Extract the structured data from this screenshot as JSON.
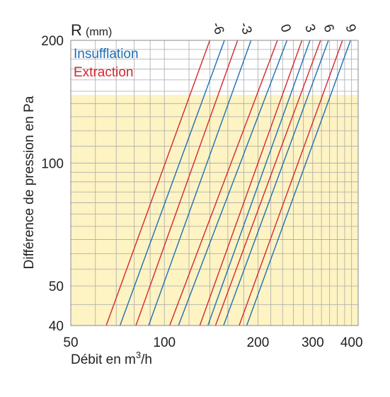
{
  "chart_data": {
    "type": "line",
    "x_scale": "log",
    "y_scale": "log",
    "xlim": [
      50,
      420
    ],
    "ylim": [
      40,
      200
    ],
    "xlabel_prefix": "Débit en m",
    "xlabel_sup": "3",
    "xlabel_suffix": "/h",
    "ylabel": "Différence de pression en Pa",
    "x_ticks": [
      50,
      100,
      200,
      300,
      400
    ],
    "y_ticks": [
      40,
      50,
      100,
      200
    ],
    "highlight_band_y": [
      40,
      147
    ],
    "highlight_color": "#fdf3c3",
    "grid": true,
    "r_label": "R",
    "r_unit": "(mm)",
    "r_values": [
      "-6",
      "-3",
      "0",
      "3",
      "6",
      "9"
    ],
    "colors": {
      "insufflation": "#1f6fb5",
      "extraction": "#d7262e"
    },
    "series": [
      {
        "name": "Extraction",
        "r": "-6",
        "points": [
          [
            65,
            40
          ],
          [
            140,
            200
          ]
        ]
      },
      {
        "name": "Insufflation",
        "r": "-6",
        "points": [
          [
            72,
            40
          ],
          [
            156,
            200
          ]
        ]
      },
      {
        "name": "Extraction",
        "r": "-3",
        "points": [
          [
            81,
            40
          ],
          [
            172,
            200
          ]
        ]
      },
      {
        "name": "Insufflation",
        "r": "-3",
        "points": [
          [
            89,
            40
          ],
          [
            190,
            200
          ]
        ]
      },
      {
        "name": "Extraction",
        "r": "0",
        "points": [
          [
            104,
            40
          ],
          [
            231,
            200
          ]
        ]
      },
      {
        "name": "Insufflation",
        "r": "0",
        "points": [
          [
            111,
            40
          ],
          [
            248,
            200
          ]
        ]
      },
      {
        "name": "Extraction",
        "r": "3",
        "points": [
          [
            130,
            40
          ],
          [
            277,
            200
          ]
        ]
      },
      {
        "name": "Insufflation",
        "r": "3",
        "points": [
          [
            138,
            40
          ],
          [
            294,
            200
          ]
        ]
      },
      {
        "name": "Extraction",
        "r": "6",
        "points": [
          [
            146,
            40
          ],
          [
            318,
            200
          ]
        ]
      },
      {
        "name": "Insufflation",
        "r": "6",
        "points": [
          [
            155,
            40
          ],
          [
            337,
            200
          ]
        ]
      },
      {
        "name": "Extraction",
        "r": "9",
        "points": [
          [
            174,
            40
          ],
          [
            374,
            200
          ]
        ]
      },
      {
        "name": "Insufflation",
        "r": "9",
        "points": [
          [
            184,
            40
          ],
          [
            397,
            200
          ]
        ]
      }
    ]
  }
}
